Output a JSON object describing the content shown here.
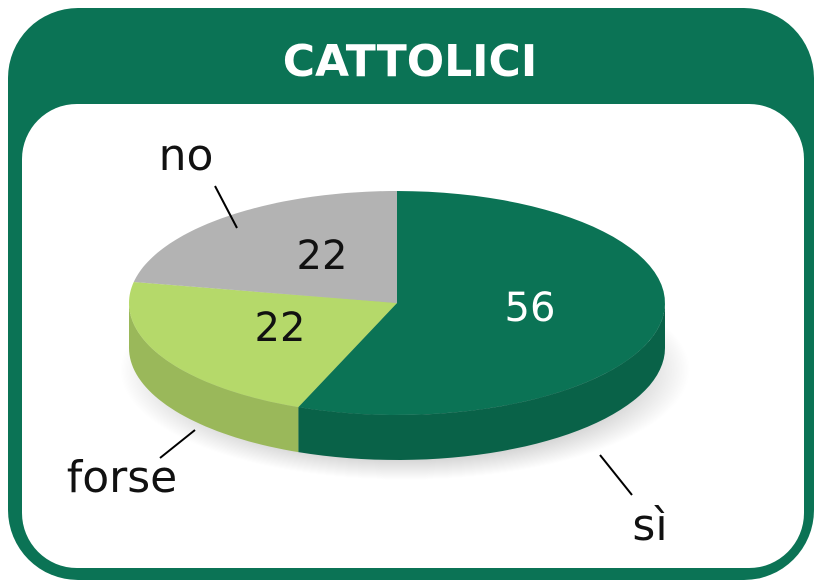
{
  "chart_data": {
    "type": "pie",
    "title": "CATTOLICI",
    "categories": [
      "sì",
      "forse",
      "no"
    ],
    "values": [
      56,
      22,
      22
    ],
    "colors": [
      "#0b7355",
      "#b5d96a",
      "#b3b3b3"
    ]
  }
}
